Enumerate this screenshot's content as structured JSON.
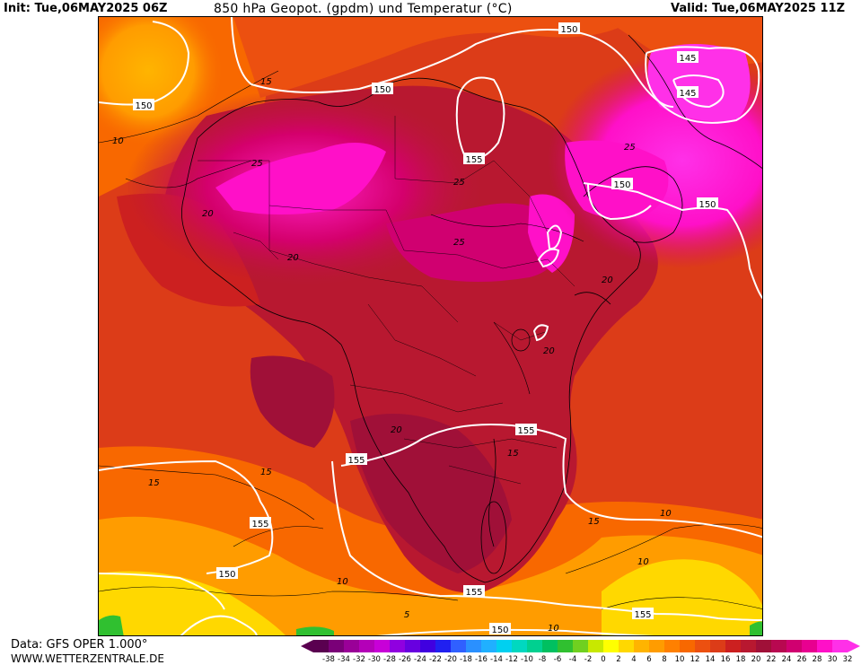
{
  "header": {
    "init": "Init: Tue,06MAY2025 06Z",
    "title": "850 hPa Geopot. (gpdm) und Temperatur (°C)",
    "valid": "Valid: Tue,06MAY2025 11Z"
  },
  "footer": {
    "data_source": "Data: GFS OPER 1.000°",
    "website": "WWW.WETTERZENTRALE.DE"
  },
  "legend": {
    "labels": [
      "-38",
      "-34",
      "-32",
      "-30",
      "-28",
      "-26",
      "-24",
      "-22",
      "-20",
      "-18",
      "-16",
      "-14",
      "-12",
      "-10",
      "-8",
      "-6",
      "-4",
      "-2",
      "0",
      "2",
      "4",
      "6",
      "8",
      "10",
      "12",
      "14",
      "16",
      "18",
      "20",
      "22",
      "24",
      "26",
      "28",
      "30",
      "32"
    ],
    "colors": [
      "#5a0050",
      "#7a0078",
      "#9a0098",
      "#b400b8",
      "#c800d8",
      "#9000e0",
      "#6800e0",
      "#4000e0",
      "#2020f0",
      "#3060ff",
      "#2a90ff",
      "#20b0ff",
      "#00d0f0",
      "#00d8c0",
      "#00d090",
      "#00c060",
      "#30c030",
      "#70d020",
      "#c8e800",
      "#ffff00",
      "#ffd800",
      "#ffb400",
      "#ff9c00",
      "#ff8000",
      "#f86800",
      "#ec5010",
      "#dc3c18",
      "#cc2020",
      "#b81830",
      "#a01038",
      "#b80850",
      "#d00070",
      "#e80090",
      "#ff10c8",
      "#ff30e8"
    ]
  },
  "map": {
    "geopotential_labels": [
      {
        "text": "150",
        "role": "contour-label"
      },
      {
        "text": "150",
        "role": "contour-label"
      },
      {
        "text": "150",
        "role": "contour-label"
      },
      {
        "text": "145",
        "role": "contour-label"
      },
      {
        "text": "145",
        "role": "contour-label"
      },
      {
        "text": "155",
        "role": "contour-label"
      },
      {
        "text": "150",
        "role": "contour-label"
      },
      {
        "text": "150",
        "role": "contour-label"
      },
      {
        "text": "155",
        "role": "contour-label"
      },
      {
        "text": "155",
        "role": "contour-label"
      },
      {
        "text": "155",
        "role": "contour-label"
      },
      {
        "text": "150",
        "role": "contour-label"
      },
      {
        "text": "155",
        "role": "contour-label"
      },
      {
        "text": "150",
        "role": "contour-label"
      },
      {
        "text": "155",
        "role": "contour-label"
      }
    ],
    "temperature_labels": [
      "10",
      "15",
      "25",
      "25",
      "20",
      "25",
      "20",
      "20",
      "20",
      "15",
      "15",
      "15",
      "15",
      "10",
      "10",
      "10",
      "5",
      "10",
      "20",
      "25"
    ]
  }
}
